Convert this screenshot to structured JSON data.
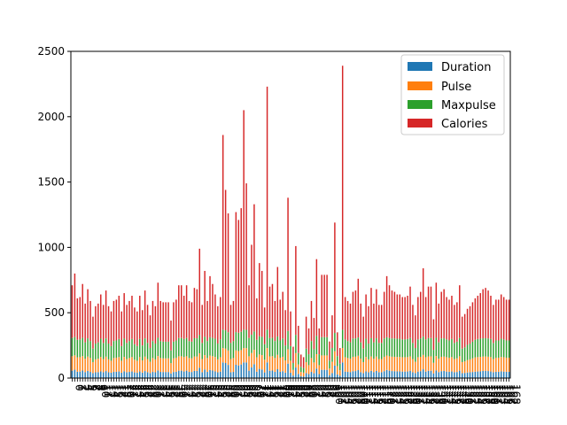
{
  "chart_data": {
    "type": "bar",
    "stacked": true,
    "title": "",
    "xlabel": "",
    "ylabel": "",
    "ylim": [
      0,
      2500
    ],
    "yticks": [
      0,
      500,
      1000,
      1500,
      2000,
      2500
    ],
    "legend_position": "top-right",
    "grid": false,
    "series": [
      {
        "name": "Duration",
        "color": "#1f77b4"
      },
      {
        "name": "Pulse",
        "color": "#ff7f0e"
      },
      {
        "name": "Maxpulse",
        "color": "#2ca02c"
      },
      {
        "name": "Calories",
        "color": "#d62728"
      }
    ],
    "categories_count": 169,
    "totals": [
      710,
      800,
      610,
      620,
      720,
      570,
      680,
      590,
      470,
      550,
      570,
      640,
      560,
      670,
      550,
      510,
      590,
      600,
      630,
      510,
      650,
      560,
      590,
      630,
      540,
      510,
      630,
      520,
      670,
      560,
      480,
      590,
      550,
      730,
      590,
      580,
      580,
      580,
      440,
      580,
      600,
      710,
      710,
      630,
      710,
      590,
      580,
      690,
      680,
      990,
      560,
      820,
      590,
      780,
      720,
      640,
      550,
      620,
      1860,
      1440,
      1260,
      560,
      590,
      1270,
      1210,
      1300,
      2050,
      1490,
      710,
      1020,
      1330,
      610,
      880,
      820,
      540,
      2230,
      700,
      720,
      590,
      850,
      600,
      660,
      520,
      1380,
      510,
      240,
      1010,
      400,
      180,
      160,
      470,
      380,
      590,
      460,
      910,
      380,
      790,
      790,
      790,
      280,
      480,
      1190,
      350,
      230,
      2390,
      620,
      590,
      570,
      660,
      670,
      760,
      570,
      470,
      640,
      550,
      690,
      570,
      680,
      560,
      560,
      660,
      780,
      710,
      670,
      660,
      640,
      640,
      620,
      620,
      630,
      700,
      560,
      480,
      620,
      660,
      840,
      620,
      700,
      700,
      450,
      730,
      570,
      660,
      680,
      620,
      600,
      630,
      560,
      580,
      710,
      470,
      490,
      530,
      550,
      580,
      610,
      630,
      650,
      680,
      690,
      670,
      630,
      560,
      600,
      600,
      640,
      620,
      600,
      600,
      610,
      580,
      620,
      680
    ]
  }
}
